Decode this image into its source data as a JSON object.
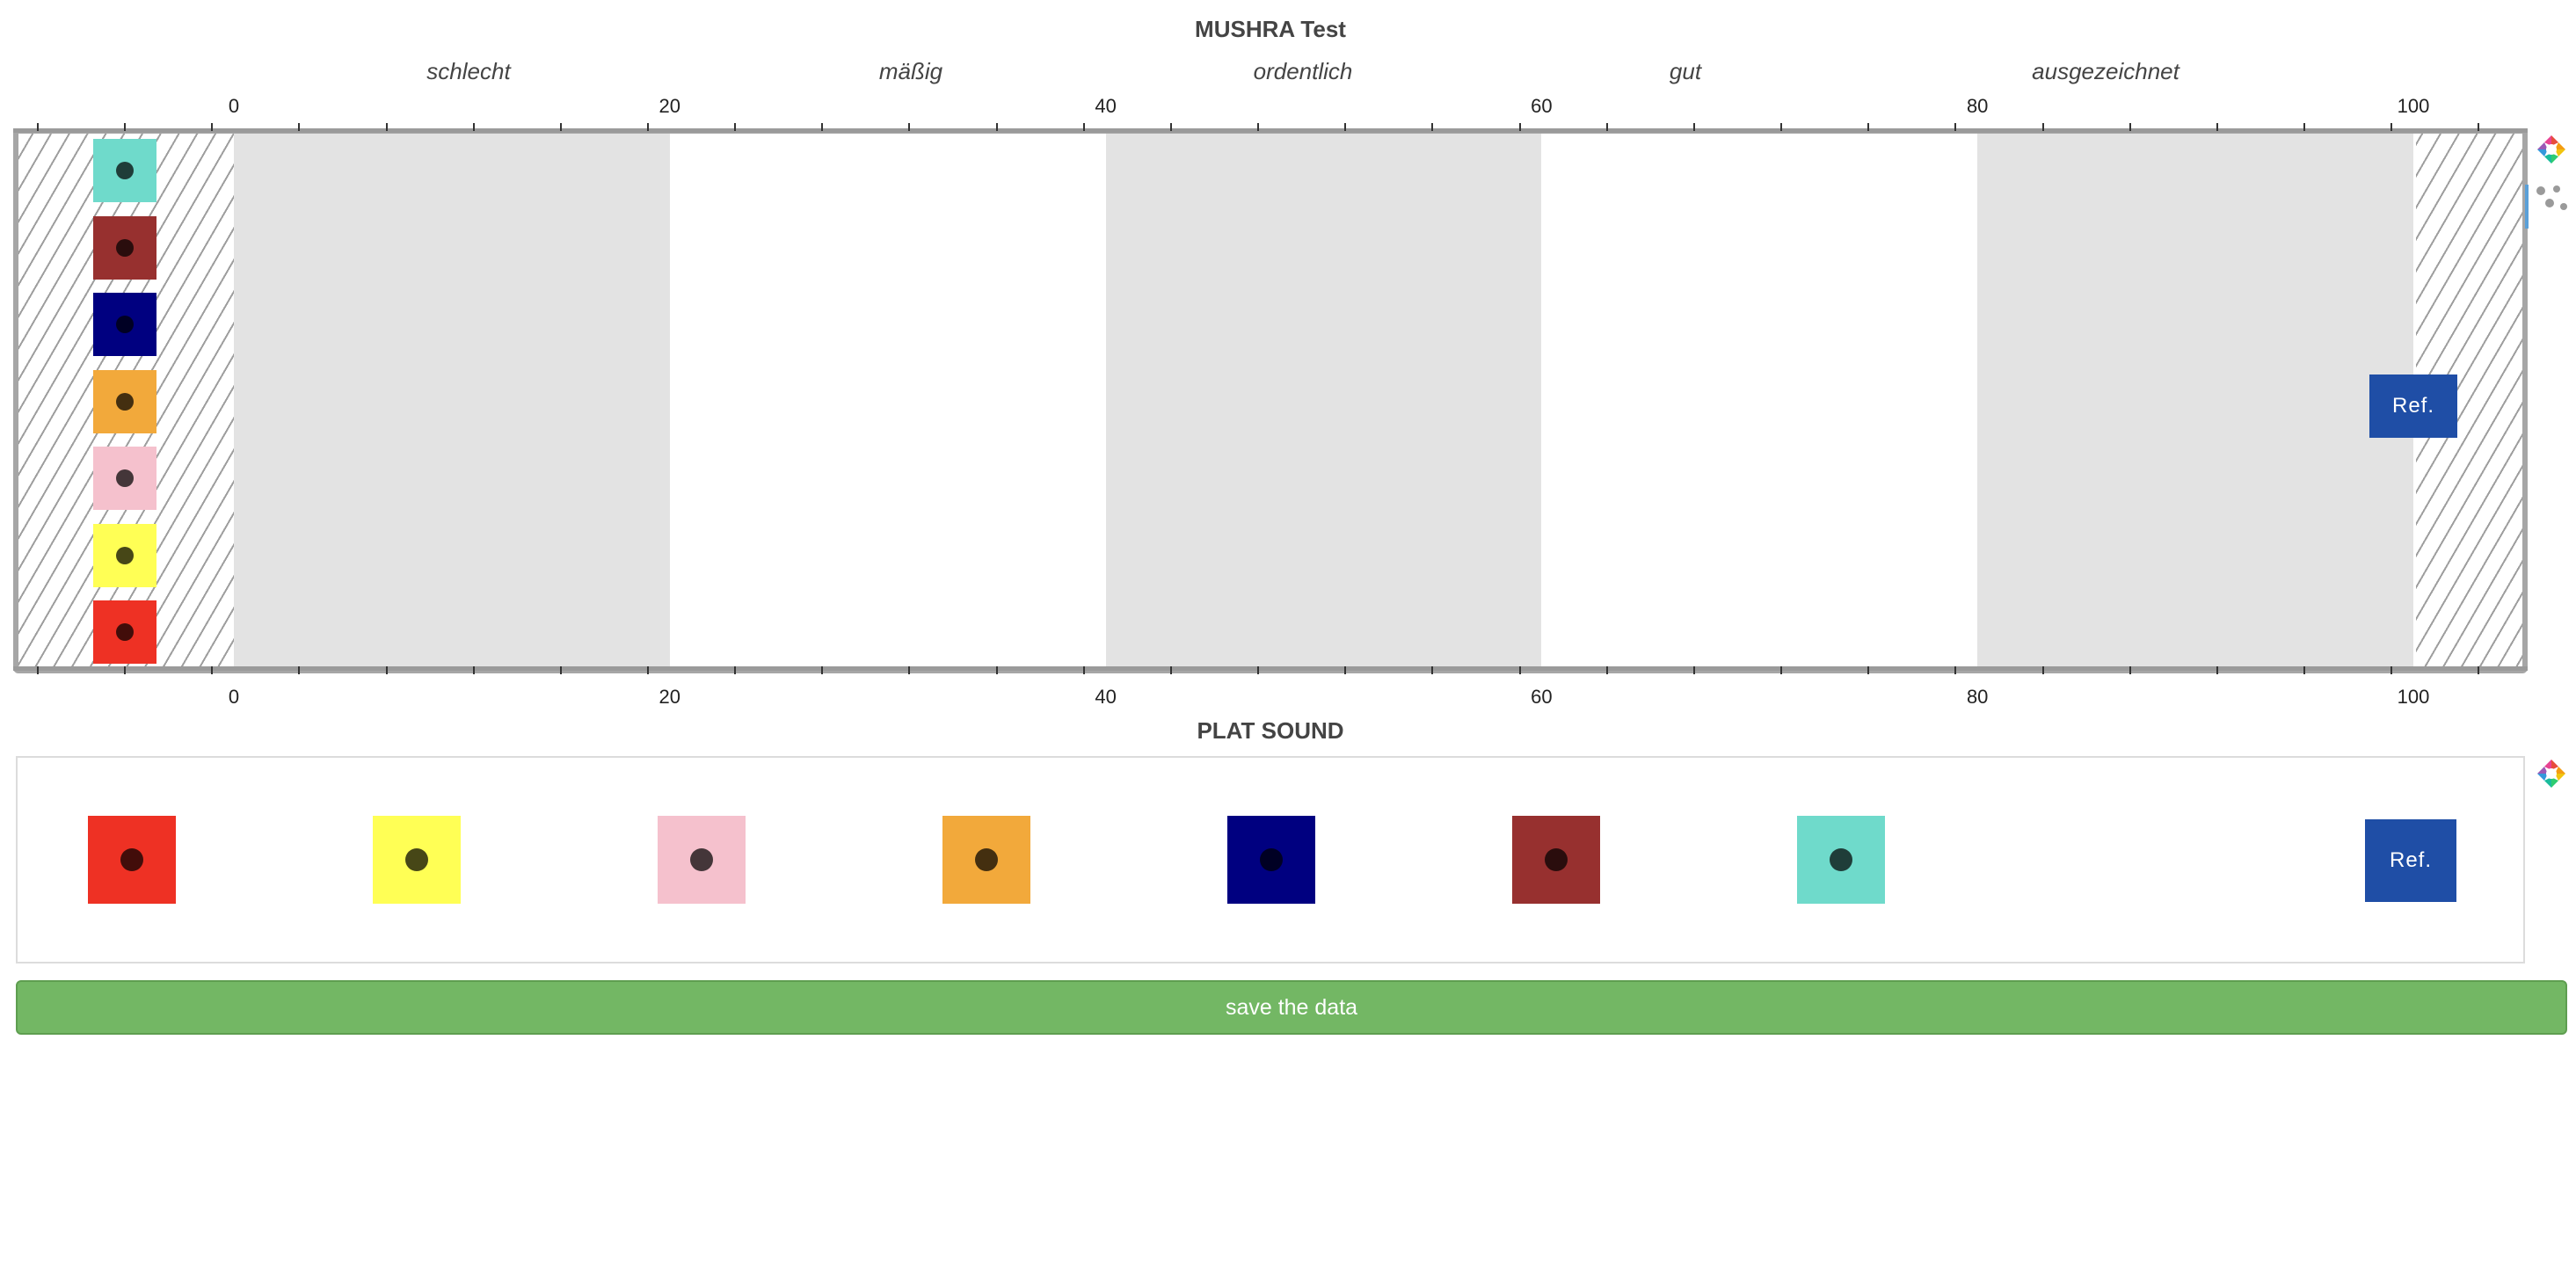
{
  "header": {
    "title": "MUSHRA Test"
  },
  "scale": {
    "categories": [
      "schlecht",
      "mäßig",
      "ordentlich",
      "gut",
      "ausgezeichnet"
    ],
    "tick_labels": [
      "0",
      "20",
      "40",
      "60",
      "80",
      "100"
    ],
    "range": [
      0,
      100
    ]
  },
  "samples": [
    {
      "name": "sample-teal",
      "color": "#6fdacb"
    },
    {
      "name": "sample-brown",
      "color": "#97302f"
    },
    {
      "name": "sample-navy",
      "color": "#000080"
    },
    {
      "name": "sample-orange",
      "color": "#f2a93b"
    },
    {
      "name": "sample-pink",
      "color": "#f5c1cd"
    },
    {
      "name": "sample-yellow",
      "color": "#ffff55"
    },
    {
      "name": "sample-red",
      "color": "#ee3124"
    }
  ],
  "reference": {
    "label": "Ref.",
    "value": 100,
    "color": "#1f4ea6"
  },
  "plat": {
    "title": "PLAT SOUND",
    "order": [
      "#ee3124",
      "#ffff55",
      "#f5c1cd",
      "#f2a93b",
      "#000080",
      "#97302f",
      "#6fdacb"
    ],
    "ref_label": "Ref."
  },
  "actions": {
    "save_label": "save the data"
  },
  "toolbar": {
    "icons": [
      "color-wheel-icon",
      "scatter-tool-icon"
    ]
  }
}
